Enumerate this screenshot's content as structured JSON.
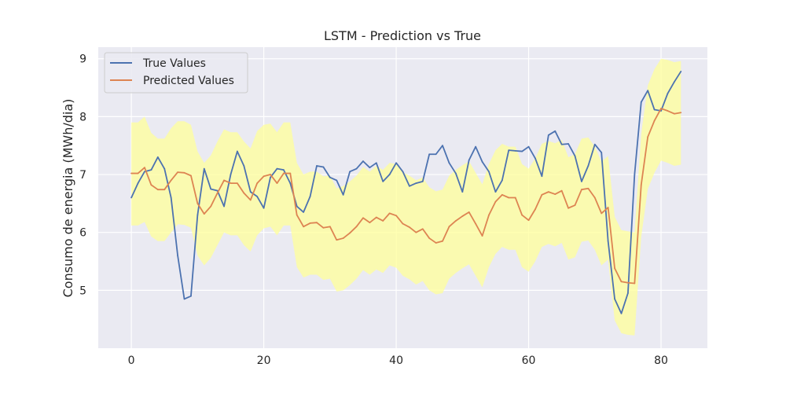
{
  "chart_data": {
    "type": "line",
    "title": "LSTM - Prediction vs True",
    "xlabel": "",
    "ylabel": "Consumo de energia (MWh/dia)",
    "xlim": [
      -5,
      87
    ],
    "ylim": [
      4.0,
      9.2
    ],
    "xticks": [
      0,
      20,
      40,
      60,
      80
    ],
    "yticks": [
      5,
      6,
      7,
      8,
      9
    ],
    "grid": true,
    "legend_position": "top-left",
    "colors": {
      "true": "#4c72b0",
      "predicted": "#dd8452",
      "band": "#ffff99",
      "background": "#eaeaf2",
      "grid": "#ffffff"
    },
    "x": [
      0,
      1,
      2,
      3,
      4,
      5,
      6,
      7,
      8,
      9,
      10,
      11,
      12,
      13,
      14,
      15,
      16,
      17,
      18,
      19,
      20,
      21,
      22,
      23,
      24,
      25,
      26,
      27,
      28,
      29,
      30,
      31,
      32,
      33,
      34,
      35,
      36,
      37,
      38,
      39,
      40,
      41,
      42,
      43,
      44,
      45,
      46,
      47,
      48,
      49,
      50,
      51,
      52,
      53,
      54,
      55,
      56,
      57,
      58,
      59,
      60,
      61,
      62,
      63,
      64,
      65,
      66,
      67,
      68,
      69,
      70,
      71,
      72,
      73,
      74,
      75,
      76,
      77,
      78,
      79,
      80,
      81,
      82,
      83
    ],
    "series": [
      {
        "name": "True Values",
        "values": [
          6.6,
          6.85,
          7.05,
          7.08,
          7.3,
          7.1,
          6.6,
          5.6,
          4.85,
          4.9,
          6.3,
          7.1,
          6.75,
          6.72,
          6.45,
          7.0,
          7.4,
          7.15,
          6.7,
          6.62,
          6.42,
          6.95,
          7.1,
          7.08,
          6.85,
          6.45,
          6.35,
          6.62,
          7.15,
          7.13,
          6.95,
          6.9,
          6.65,
          7.05,
          7.1,
          7.23,
          7.12,
          7.2,
          6.88,
          7.0,
          7.2,
          7.05,
          6.8,
          6.85,
          6.88,
          7.35,
          7.35,
          7.5,
          7.2,
          7.02,
          6.7,
          7.25,
          7.48,
          7.22,
          7.05,
          6.7,
          6.9,
          7.42,
          7.41,
          7.4,
          7.48,
          7.28,
          6.97,
          7.68,
          7.75,
          7.52,
          7.53,
          7.32,
          6.88,
          7.15,
          7.52,
          7.38,
          5.85,
          4.85,
          4.6,
          4.95,
          7.0,
          8.25,
          8.45,
          8.12,
          8.1,
          8.4,
          8.6,
          8.78
        ]
      },
      {
        "name": "Predicted Values",
        "values": [
          7.02,
          7.02,
          7.12,
          6.82,
          6.74,
          6.74,
          6.9,
          7.04,
          7.03,
          6.98,
          6.5,
          6.32,
          6.45,
          6.68,
          6.9,
          6.85,
          6.85,
          6.68,
          6.56,
          6.85,
          6.97,
          7.0,
          6.85,
          7.02,
          7.02,
          6.3,
          6.1,
          6.16,
          6.17,
          6.08,
          6.1,
          5.87,
          5.9,
          5.99,
          6.1,
          6.25,
          6.17,
          6.26,
          6.2,
          6.33,
          6.29,
          6.15,
          6.09,
          6.0,
          6.06,
          5.9,
          5.82,
          5.85,
          6.1,
          6.2,
          6.28,
          6.35,
          6.15,
          5.94,
          6.3,
          6.53,
          6.65,
          6.6,
          6.6,
          6.3,
          6.21,
          6.4,
          6.65,
          6.7,
          6.66,
          6.72,
          6.42,
          6.47,
          6.74,
          6.76,
          6.6,
          6.33,
          6.43,
          5.38,
          5.15,
          5.13,
          5.12,
          6.82,
          7.65,
          7.93,
          8.14,
          8.1,
          8.05,
          8.07
        ]
      }
    ],
    "band": {
      "lower": [
        6.12,
        6.12,
        6.18,
        5.93,
        5.85,
        5.85,
        6.0,
        6.14,
        6.13,
        6.08,
        5.6,
        5.43,
        5.56,
        5.78,
        6.0,
        5.95,
        5.95,
        5.78,
        5.67,
        5.95,
        6.07,
        6.1,
        5.95,
        6.12,
        6.12,
        5.4,
        5.22,
        5.27,
        5.27,
        5.18,
        5.2,
        4.98,
        5.0,
        5.09,
        5.2,
        5.35,
        5.27,
        5.36,
        5.3,
        5.43,
        5.39,
        5.25,
        5.19,
        5.1,
        5.16,
        5.0,
        4.93,
        4.95,
        5.2,
        5.3,
        5.38,
        5.45,
        5.25,
        5.05,
        5.4,
        5.63,
        5.75,
        5.7,
        5.7,
        5.4,
        5.32,
        5.5,
        5.75,
        5.8,
        5.76,
        5.82,
        5.53,
        5.57,
        5.84,
        5.86,
        5.7,
        5.43,
        5.53,
        4.48,
        4.26,
        4.23,
        4.22,
        5.92,
        6.75,
        7.03,
        7.24,
        7.2,
        7.15,
        7.17
      ],
      "upper": [
        7.9,
        7.9,
        8.0,
        7.72,
        7.62,
        7.62,
        7.8,
        7.92,
        7.92,
        7.86,
        7.4,
        7.2,
        7.33,
        7.57,
        7.78,
        7.73,
        7.73,
        7.57,
        7.45,
        7.75,
        7.86,
        7.88,
        7.73,
        7.9,
        7.9,
        7.2,
        7.0,
        7.05,
        7.05,
        6.97,
        6.98,
        6.76,
        6.8,
        6.88,
        6.98,
        7.13,
        7.05,
        7.15,
        7.08,
        7.2,
        7.18,
        7.04,
        6.98,
        6.9,
        6.95,
        6.78,
        6.71,
        6.74,
        6.98,
        7.08,
        7.16,
        7.23,
        7.03,
        6.83,
        7.18,
        7.42,
        7.53,
        7.48,
        7.48,
        7.18,
        7.1,
        7.28,
        7.53,
        7.58,
        7.54,
        7.6,
        7.3,
        7.35,
        7.62,
        7.64,
        7.48,
        7.22,
        7.32,
        6.27,
        6.04,
        6.02,
        6.0,
        7.7,
        8.54,
        8.82,
        9.0,
        8.98,
        8.94,
        8.96
      ]
    }
  }
}
